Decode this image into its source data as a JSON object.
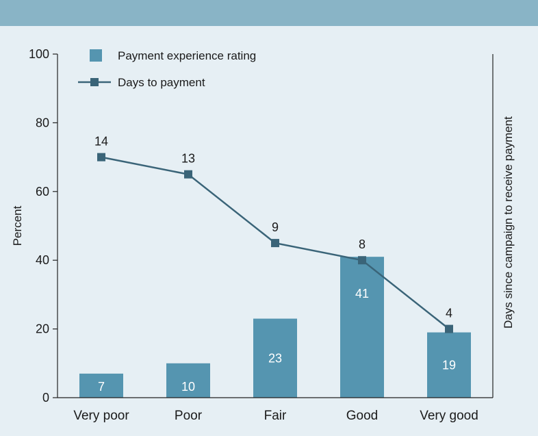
{
  "chart_data": {
    "type": "bar",
    "categories": [
      "Very poor",
      "Poor",
      "Fair",
      "Good",
      "Very good"
    ],
    "series": [
      {
        "name": "Payment experience rating",
        "type": "bar",
        "values": [
          7,
          10,
          23,
          41,
          19
        ]
      },
      {
        "name": "Days to payment",
        "type": "line",
        "values": [
          14,
          13,
          9,
          8,
          4
        ]
      }
    ],
    "line_plot_values_percent": [
      70,
      65,
      45,
      40,
      20
    ],
    "ylabel": "Percent",
    "y2label": "Days since campaign to receive payment",
    "ylim": [
      0,
      100
    ],
    "yticks": [
      0,
      20,
      40,
      60,
      80,
      100
    ],
    "legend_position": "top-left",
    "grid": false,
    "colors": {
      "bar": "#5595b0",
      "line": "#3a6478",
      "header": "#89b4c6",
      "background": "#e6eff4"
    }
  }
}
